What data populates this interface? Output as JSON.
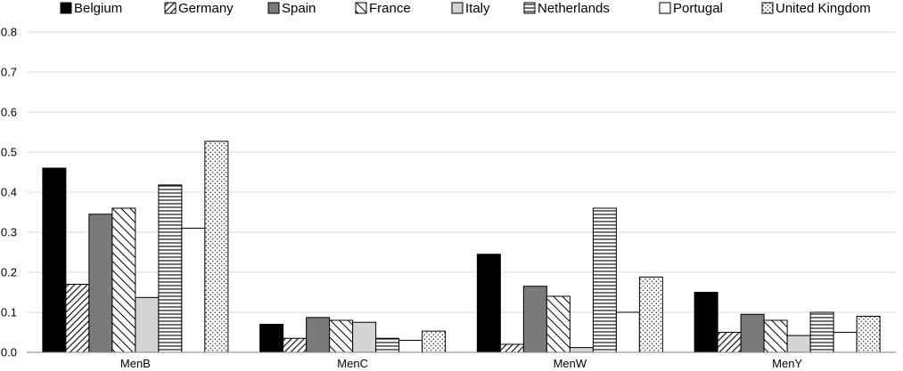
{
  "chart_data": {
    "type": "bar",
    "categories": [
      "MenB",
      "MenC",
      "MenW",
      "MenY"
    ],
    "series": [
      {
        "name": "Belgium",
        "pattern": "solid-black",
        "values": [
          0.46,
          0.07,
          0.245,
          0.15
        ]
      },
      {
        "name": "Germany",
        "pattern": "diagonal-dense",
        "values": [
          0.17,
          0.035,
          0.02,
          0.05
        ]
      },
      {
        "name": "Spain",
        "pattern": "solid-gray",
        "values": [
          0.345,
          0.087,
          0.165,
          0.095
        ]
      },
      {
        "name": "France",
        "pattern": "diagonal-wide",
        "values": [
          0.36,
          0.08,
          0.14,
          0.08
        ]
      },
      {
        "name": "Italy",
        "pattern": "solid-light-gray",
        "values": [
          0.137,
          0.075,
          0.012,
          0.042
        ]
      },
      {
        "name": "Netherlands",
        "pattern": "horizontal-lines",
        "values": [
          0.418,
          0.035,
          0.36,
          0.1
        ]
      },
      {
        "name": "Portugal",
        "pattern": "white",
        "values": [
          0.31,
          0.03,
          0.1,
          0.05
        ]
      },
      {
        "name": "United Kingdom",
        "pattern": "dots",
        "values": [
          0.527,
          0.053,
          0.188,
          0.09
        ]
      }
    ],
    "ylim": [
      0,
      0.8
    ],
    "yticks": [
      "0.0",
      "0.1",
      "0.2",
      "0.3",
      "0.4",
      "0.5",
      "0.6",
      "0.7",
      "0.8"
    ],
    "grid": true,
    "legend": "top",
    "colors": {
      "grid": "#d9d9d9",
      "axis": "#808080",
      "black": "#000000",
      "gray": "#7a7a7a",
      "light_gray": "#d4d4d4"
    }
  }
}
